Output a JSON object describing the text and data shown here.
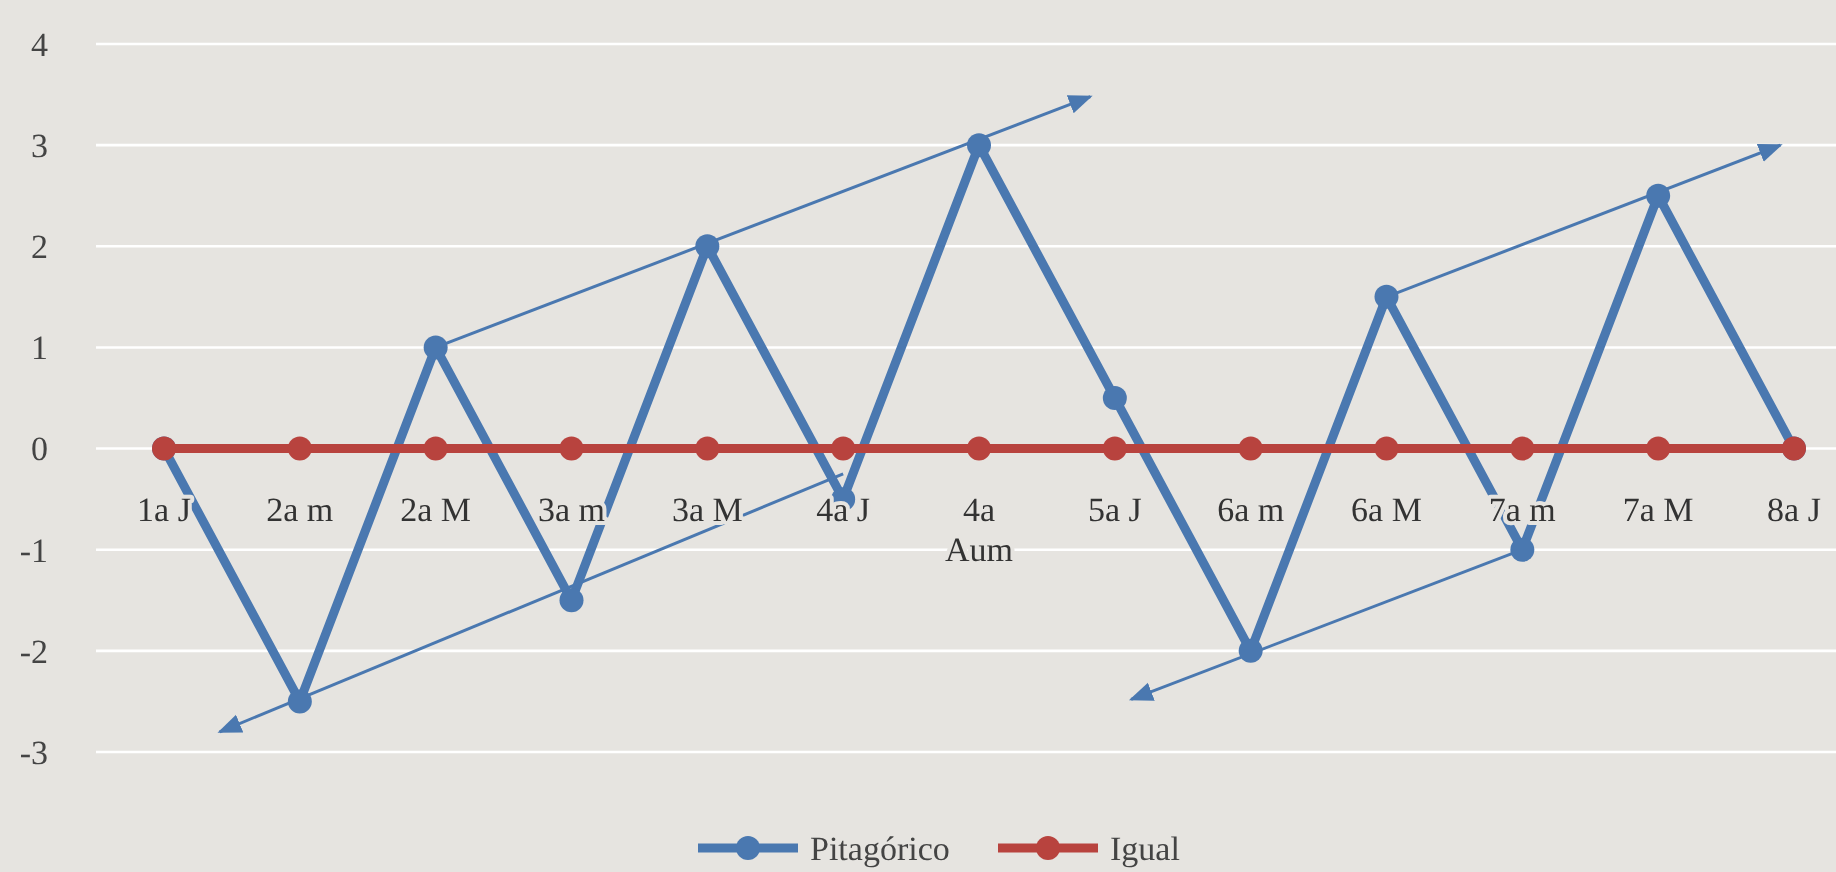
{
  "chart_data": {
    "type": "line",
    "categories": [
      "1a J",
      "2a m",
      "2a M",
      "3a m",
      "3a M",
      "4a J",
      "4a Aum",
      "5a J",
      "6a m",
      "6a M",
      "7a m",
      "7a M",
      "8a J"
    ],
    "series": [
      {
        "name": "Pitagórico",
        "color": "#4a78b0",
        "values": [
          0,
          -2.5,
          1,
          -1.5,
          2,
          -0.5,
          3,
          0.5,
          -2,
          1.5,
          -1,
          2.5,
          0
        ]
      },
      {
        "name": "Igual",
        "color": "#b8433e",
        "values": [
          0,
          0,
          0,
          0,
          0,
          0,
          0,
          0,
          0,
          0,
          0,
          0,
          0
        ]
      }
    ],
    "ylim": [
      -3,
      4
    ],
    "yticks": [
      -3,
      -2,
      -1,
      0,
      1,
      2,
      3,
      4
    ],
    "grid": "y",
    "legend": "bottom",
    "marker": "circle",
    "line_style": "solid"
  }
}
